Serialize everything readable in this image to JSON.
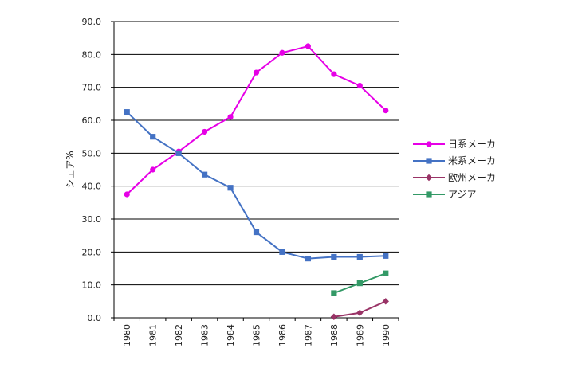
{
  "chart_data": {
    "type": "line",
    "title": "",
    "xlabel": "",
    "ylabel": "シェア%",
    "x": [
      "1980",
      "1981",
      "1982",
      "1983",
      "1984",
      "1985",
      "1986",
      "1987",
      "1988",
      "1989",
      "1990"
    ],
    "ylim": [
      0,
      90
    ],
    "yticks": [
      "0.0",
      "10.0",
      "20.0",
      "30.0",
      "40.0",
      "50.0",
      "60.0",
      "70.0",
      "80.0",
      "90.0"
    ],
    "grid": "horizontal",
    "legend": "right",
    "series": [
      {
        "name": "日系メーカ",
        "color": "#e600e6",
        "marker": "circle",
        "values": [
          37.5,
          45.0,
          50.5,
          56.5,
          61.0,
          74.5,
          80.5,
          82.5,
          74.0,
          70.5,
          63.0
        ]
      },
      {
        "name": "米系メーカ",
        "color": "#4472c4",
        "marker": "square",
        "values": [
          62.5,
          55.0,
          50.0,
          43.5,
          39.5,
          26.0,
          20.0,
          18.0,
          18.5,
          18.5,
          18.8
        ]
      },
      {
        "name": "欧州メーカ",
        "color": "#993366",
        "marker": "diamond",
        "values": [
          null,
          null,
          null,
          null,
          null,
          null,
          null,
          null,
          0.3,
          1.5,
          5.0
        ]
      },
      {
        "name": "アジア",
        "color": "#339966",
        "marker": "square",
        "values": [
          null,
          null,
          null,
          null,
          null,
          null,
          null,
          null,
          7.5,
          10.5,
          13.5
        ]
      }
    ]
  }
}
